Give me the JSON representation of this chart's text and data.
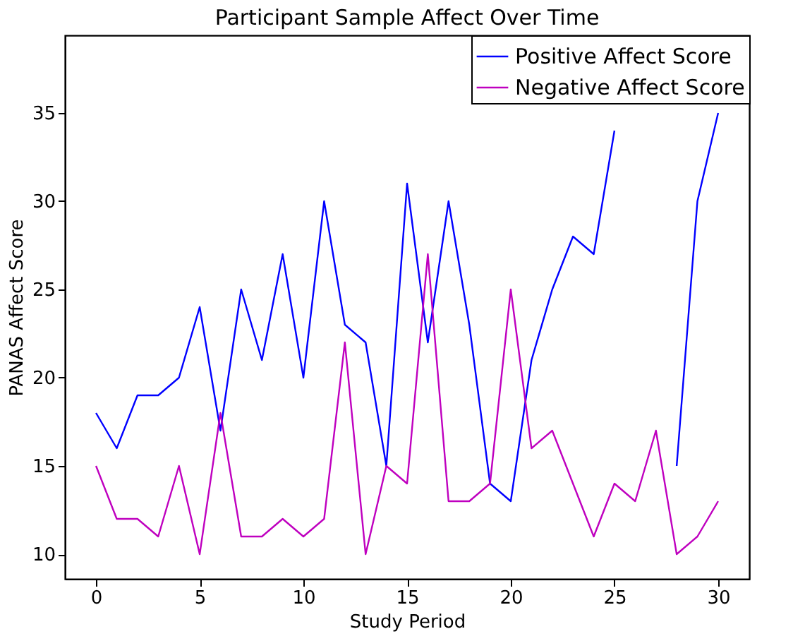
{
  "chart_data": {
    "type": "line",
    "title": "Participant Sample Affect Over Time",
    "xlabel": "Study Period",
    "ylabel": "PANAS Affect Score",
    "x": [
      0,
      1,
      2,
      3,
      4,
      5,
      6,
      7,
      8,
      9,
      10,
      11,
      12,
      13,
      14,
      15,
      16,
      17,
      18,
      19,
      20,
      21,
      22,
      23,
      24,
      25,
      26,
      27,
      28,
      29,
      30
    ],
    "series": [
      {
        "name": "Positive Affect Score",
        "color": "#0000ff",
        "values": [
          18,
          16,
          19,
          19,
          20,
          24,
          17,
          25,
          21,
          27,
          20,
          30,
          23,
          22,
          15,
          31,
          22,
          30,
          23,
          14,
          13,
          21,
          25,
          28,
          27,
          34,
          null,
          null,
          15,
          30,
          35
        ]
      },
      {
        "name": "Negative Affect Score",
        "color": "#bf00bf",
        "values": [
          15,
          12,
          12,
          11,
          15,
          10,
          18,
          11,
          11,
          12,
          11,
          12,
          22,
          10,
          15,
          14,
          27,
          13,
          13,
          14,
          25,
          16,
          17,
          14,
          11,
          14,
          13,
          17,
          10,
          11,
          13
        ]
      }
    ],
    "xlim": [
      -1.5,
      31.5
    ],
    "xticks": [
      0,
      5,
      10,
      15,
      20,
      25,
      30
    ],
    "ylim": [
      8.6,
      39.4
    ],
    "yticks": [
      10,
      15,
      20,
      25,
      30,
      35
    ],
    "grid": false,
    "legend": "top right",
    "marker": "none",
    "line_style": "solid"
  }
}
